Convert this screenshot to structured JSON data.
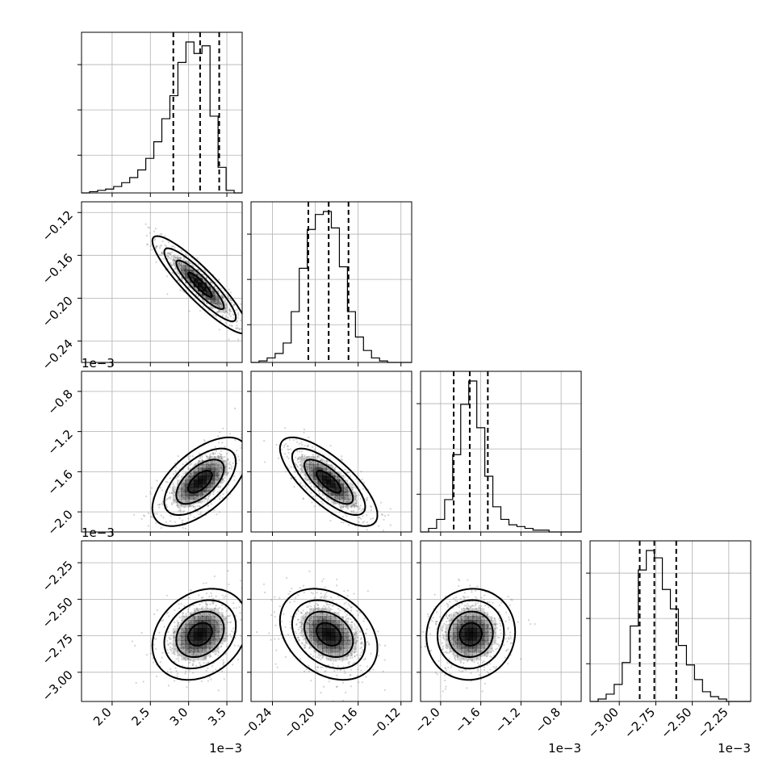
{
  "chart_data": {
    "type": "corner",
    "parameters": [
      {
        "range": [
          0.0016,
          0.0037
        ],
        "ticks": [
          0.002,
          0.0025,
          0.003,
          0.0035
        ],
        "tick_labels": [
          "2.0",
          "2.5",
          "3.0",
          "3.5"
        ],
        "offset_label": "1e−3",
        "quantiles": [
          0.0028,
          0.00315,
          0.0034
        ],
        "hist_edges_start": 0.0016,
        "hist_bin_width": 0.000105,
        "hist_counts": [
          0,
          1,
          2,
          3,
          5,
          8,
          12,
          18,
          27,
          40,
          58,
          76,
          102,
          118,
          109,
          115,
          60,
          20,
          2,
          0
        ]
      },
      {
        "range": [
          -0.26,
          -0.11
        ],
        "ticks": [
          -0.24,
          -0.2,
          -0.16,
          -0.12
        ],
        "tick_labels": [
          "−0.24",
          "−0.20",
          "−0.16",
          "−0.12"
        ],
        "offset_label": "",
        "quantiles": [
          -0.2065,
          -0.1875,
          -0.169
        ],
        "hist_edges_start": -0.26,
        "hist_bin_width": 0.0075,
        "hist_counts": [
          0,
          1,
          3,
          6,
          13,
          34,
          63,
          89,
          99,
          101,
          90,
          64,
          34,
          17,
          8,
          3,
          1,
          0,
          0,
          0
        ]
      },
      {
        "range": [
          -0.0022,
          -0.0006
        ],
        "ticks": [
          -0.002,
          -0.0016,
          -0.0012,
          -0.0008
        ],
        "tick_labels": [
          "−2.0",
          "−1.6",
          "−1.2",
          "−0.8"
        ],
        "offset_label": "1e−3",
        "quantiles": [
          -0.00187,
          -0.00171,
          -0.00153
        ],
        "hist_edges_start": -0.0022,
        "hist_bin_width": 8e-05,
        "hist_counts": [
          0,
          2,
          7,
          18,
          43,
          71,
          84,
          58,
          31,
          14,
          7,
          4,
          3,
          2,
          1,
          1,
          0,
          0,
          0,
          0
        ]
      },
      {
        "range": [
          -0.0032,
          -0.0021
        ],
        "ticks": [
          -0.003,
          -0.00275,
          -0.0025,
          -0.00225
        ],
        "tick_labels": [
          "−3.00",
          "−2.75",
          "−2.50",
          "−2.25"
        ],
        "offset_label": "1e−3",
        "quantiles": [
          -0.00286,
          -0.00276,
          -0.00261
        ],
        "hist_edges_start": -0.0032,
        "hist_bin_width": 5.5e-05,
        "hist_counts": [
          0,
          1,
          3,
          7,
          16,
          31,
          54,
          62,
          59,
          46,
          38,
          23,
          15,
          9,
          4,
          2,
          1,
          0,
          0,
          0
        ]
      }
    ],
    "pairs": [
      {
        "row": 1,
        "col": 0,
        "corr": -0.9,
        "mean": [
          0.00315,
          -0.1875
        ],
        "sd": [
          0.00024,
          0.0175
        ]
      },
      {
        "row": 2,
        "col": 0,
        "corr": 0.6,
        "mean": [
          0.00315,
          -0.0017
        ],
        "sd": [
          0.00024,
          0.00017
        ]
      },
      {
        "row": 2,
        "col": 1,
        "corr": -0.75,
        "mean": [
          -0.1875,
          -0.0017
        ],
        "sd": [
          0.0175,
          0.00017
        ]
      },
      {
        "row": 3,
        "col": 0,
        "corr": 0.25,
        "mean": [
          0.00315,
          -0.00274
        ],
        "sd": [
          0.00024,
          0.00012
        ]
      },
      {
        "row": 3,
        "col": 1,
        "corr": -0.3,
        "mean": [
          -0.1875,
          -0.00274
        ],
        "sd": [
          0.0175,
          0.00012
        ]
      },
      {
        "row": 3,
        "col": 2,
        "corr": 0.05,
        "mean": [
          -0.0017,
          -0.00274
        ],
        "sd": [
          0.00017,
          0.00012
        ]
      }
    ],
    "contour_levels_sigma": [
      0.5,
      1.0,
      1.5,
      2.0
    ],
    "colors": {
      "points": "#808080",
      "density": "#000000",
      "lines": "#000000",
      "grid": "#b0b0b0"
    }
  }
}
